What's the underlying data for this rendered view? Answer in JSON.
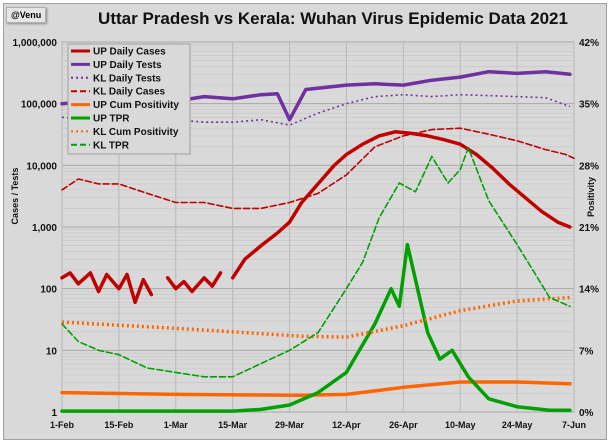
{
  "badge": "@Venu",
  "chart_data": {
    "type": "line",
    "title": "Uttar Pradesh vs Kerala: Wuhan Virus Epidemic Data 2021",
    "ylabel": "Cases / Tests",
    "y2label": "Positivity",
    "yscale": "log",
    "ylim": [
      1,
      1000000
    ],
    "y2lim": [
      0,
      42
    ],
    "ytick_labels": [
      "1",
      "10",
      "100",
      "1,000",
      "10,000",
      "100,000",
      "1,000,000"
    ],
    "ytick_values": [
      1,
      10,
      100,
      1000,
      10000,
      100000,
      1000000
    ],
    "y2tick_labels": [
      "0%",
      "7%",
      "14%",
      "21%",
      "28%",
      "35%",
      "42%"
    ],
    "y2tick_values": [
      0,
      7,
      14,
      21,
      28,
      35,
      42
    ],
    "xlim": [
      "2021-02-01",
      "2021-06-07"
    ],
    "xtick_labels": [
      "1-Feb",
      "15-Feb",
      "1-Mar",
      "15-Mar",
      "29-Mar",
      "12-Apr",
      "26-Apr",
      "10-May",
      "24-May",
      "7-Jun"
    ],
    "xtick_dates": [
      "2021-02-01",
      "2021-02-15",
      "2021-03-01",
      "2021-03-15",
      "2021-03-29",
      "2021-04-12",
      "2021-04-26",
      "2021-05-10",
      "2021-05-24",
      "2021-06-07"
    ],
    "grid": true,
    "legend_position": "top-left",
    "series": [
      {
        "name": "UP Daily Cases",
        "axis": "left",
        "color": "#c00000",
        "style": "solid",
        "points": [
          [
            "2021-02-01",
            150
          ],
          [
            "2021-02-03",
            180
          ],
          [
            "2021-02-05",
            120
          ],
          [
            "2021-02-08",
            180
          ],
          [
            "2021-02-10",
            90
          ],
          [
            "2021-02-12",
            170
          ],
          [
            "2021-02-15",
            100
          ],
          [
            "2021-02-17",
            170
          ],
          [
            "2021-02-19",
            60
          ],
          [
            "2021-02-21",
            140
          ],
          [
            "2021-02-23",
            80
          ],
          null,
          [
            "2021-02-27",
            150
          ],
          [
            "2021-03-01",
            100
          ],
          [
            "2021-03-03",
            130
          ],
          [
            "2021-03-05",
            90
          ],
          [
            "2021-03-08",
            150
          ],
          [
            "2021-03-10",
            110
          ],
          [
            "2021-03-12",
            180
          ],
          null,
          [
            "2021-03-15",
            150
          ],
          [
            "2021-03-18",
            300
          ],
          [
            "2021-03-22",
            500
          ],
          [
            "2021-03-26",
            800
          ],
          [
            "2021-03-29",
            1200
          ],
          [
            "2021-04-01",
            2500
          ],
          [
            "2021-04-05",
            5000
          ],
          [
            "2021-04-09",
            10000
          ],
          [
            "2021-04-12",
            15000
          ],
          [
            "2021-04-16",
            22000
          ],
          [
            "2021-04-20",
            30000
          ],
          [
            "2021-04-24",
            35000
          ],
          [
            "2021-04-28",
            33000
          ],
          [
            "2021-05-02",
            30000
          ],
          [
            "2021-05-06",
            26000
          ],
          [
            "2021-05-10",
            22000
          ],
          [
            "2021-05-14",
            15000
          ],
          [
            "2021-05-18",
            9000
          ],
          [
            "2021-05-22",
            5000
          ],
          [
            "2021-05-26",
            3000
          ],
          [
            "2021-05-30",
            1800
          ],
          [
            "2021-06-03",
            1200
          ],
          [
            "2021-06-06",
            1000
          ]
        ]
      },
      {
        "name": "UP Daily Tests",
        "axis": "left",
        "color": "#7030a0",
        "style": "solid",
        "points": [
          [
            "2021-02-01",
            100000
          ],
          [
            "2021-02-08",
            110000
          ],
          [
            "2021-02-15",
            90000
          ],
          [
            "2021-02-22",
            95000
          ],
          [
            "2021-03-01",
            110000
          ],
          [
            "2021-03-08",
            130000
          ],
          [
            "2021-03-15",
            120000
          ],
          [
            "2021-03-22",
            140000
          ],
          [
            "2021-03-26",
            145000
          ],
          [
            "2021-03-29",
            55000
          ],
          [
            "2021-04-02",
            170000
          ],
          [
            "2021-04-12",
            200000
          ],
          [
            "2021-04-19",
            210000
          ],
          [
            "2021-04-26",
            200000
          ],
          [
            "2021-05-03",
            240000
          ],
          [
            "2021-05-10",
            270000
          ],
          [
            "2021-05-17",
            330000
          ],
          [
            "2021-05-24",
            310000
          ],
          [
            "2021-05-31",
            330000
          ],
          [
            "2021-06-06",
            300000
          ]
        ]
      },
      {
        "name": "KL Daily Tests",
        "axis": "left",
        "color": "#7030a0",
        "style": "dotted",
        "points": [
          [
            "2021-02-01",
            60000
          ],
          [
            "2021-02-08",
            55000
          ],
          [
            "2021-02-15",
            60000
          ],
          [
            "2021-02-22",
            50000
          ],
          [
            "2021-03-01",
            55000
          ],
          [
            "2021-03-08",
            50000
          ],
          [
            "2021-03-15",
            50000
          ],
          [
            "2021-03-22",
            55000
          ],
          [
            "2021-03-29",
            45000
          ],
          [
            "2021-04-05",
            70000
          ],
          [
            "2021-04-12",
            100000
          ],
          [
            "2021-04-19",
            130000
          ],
          [
            "2021-04-26",
            140000
          ],
          [
            "2021-05-03",
            130000
          ],
          [
            "2021-05-10",
            140000
          ],
          [
            "2021-05-17",
            135000
          ],
          [
            "2021-05-24",
            130000
          ],
          [
            "2021-05-31",
            125000
          ],
          [
            "2021-06-06",
            90000
          ]
        ]
      },
      {
        "name": "KL Daily Cases",
        "axis": "left",
        "color": "#c00000",
        "style": "dashed",
        "points": [
          [
            "2021-02-01",
            4000
          ],
          [
            "2021-02-05",
            6000
          ],
          [
            "2021-02-10",
            5000
          ],
          [
            "2021-02-15",
            5000
          ],
          [
            "2021-02-22",
            3500
          ],
          [
            "2021-03-01",
            2500
          ],
          [
            "2021-03-08",
            2500
          ],
          [
            "2021-03-15",
            2000
          ],
          [
            "2021-03-22",
            2000
          ],
          [
            "2021-03-29",
            2500
          ],
          [
            "2021-04-05",
            3500
          ],
          [
            "2021-04-12",
            7000
          ],
          [
            "2021-04-19",
            20000
          ],
          [
            "2021-04-26",
            30000
          ],
          [
            "2021-05-03",
            38000
          ],
          [
            "2021-05-10",
            40000
          ],
          [
            "2021-05-17",
            32000
          ],
          [
            "2021-05-24",
            25000
          ],
          [
            "2021-05-31",
            18000
          ],
          [
            "2021-06-05",
            15000
          ],
          [
            "2021-06-07",
            13000
          ]
        ]
      },
      {
        "name": "UP Cum Positivity",
        "axis": "right",
        "color": "#ff6600",
        "style": "solid",
        "points": [
          [
            "2021-02-01",
            2.2
          ],
          [
            "2021-03-01",
            2.0
          ],
          [
            "2021-04-01",
            1.9
          ],
          [
            "2021-04-12",
            2.0
          ],
          [
            "2021-04-26",
            2.8
          ],
          [
            "2021-05-10",
            3.4
          ],
          [
            "2021-05-24",
            3.4
          ],
          [
            "2021-06-06",
            3.2
          ]
        ]
      },
      {
        "name": "UP TPR",
        "axis": "right",
        "color": "#00a000",
        "style": "solid",
        "points": [
          [
            "2021-02-01",
            0.1
          ],
          [
            "2021-03-15",
            0.1
          ],
          [
            "2021-03-22",
            0.3
          ],
          [
            "2021-03-29",
            0.8
          ],
          [
            "2021-04-05",
            2.2
          ],
          [
            "2021-04-12",
            4.5
          ],
          [
            "2021-04-19",
            10
          ],
          [
            "2021-04-23",
            14
          ],
          [
            "2021-04-25",
            12
          ],
          [
            "2021-04-27",
            19
          ],
          [
            "2021-05-02",
            9
          ],
          [
            "2021-05-05",
            6
          ],
          [
            "2021-05-08",
            7
          ],
          [
            "2021-05-12",
            4
          ],
          [
            "2021-05-17",
            1.5
          ],
          [
            "2021-05-24",
            0.6
          ],
          [
            "2021-06-01",
            0.2
          ],
          [
            "2021-06-06",
            0.2
          ]
        ]
      },
      {
        "name": "KL Cum Positivity",
        "axis": "right",
        "color": "#ff6600",
        "style": "dotted",
        "points": [
          [
            "2021-02-01",
            10.2
          ],
          [
            "2021-03-01",
            9.5
          ],
          [
            "2021-04-01",
            8.6
          ],
          [
            "2021-04-12",
            8.5
          ],
          [
            "2021-04-26",
            9.8
          ],
          [
            "2021-05-10",
            11.5
          ],
          [
            "2021-05-24",
            12.6
          ],
          [
            "2021-06-06",
            13.0
          ]
        ]
      },
      {
        "name": "KL TPR",
        "axis": "right",
        "color": "#00a000",
        "style": "dashed",
        "points": [
          [
            "2021-02-01",
            10
          ],
          [
            "2021-02-05",
            8
          ],
          [
            "2021-02-10",
            7
          ],
          [
            "2021-02-15",
            6.5
          ],
          [
            "2021-02-22",
            5
          ],
          [
            "2021-03-01",
            4.5
          ],
          [
            "2021-03-08",
            4
          ],
          [
            "2021-03-15",
            4
          ],
          [
            "2021-03-22",
            5.5
          ],
          [
            "2021-03-29",
            7
          ],
          [
            "2021-04-05",
            9
          ],
          [
            "2021-04-12",
            14
          ],
          [
            "2021-04-16",
            17
          ],
          [
            "2021-04-20",
            22
          ],
          [
            "2021-04-25",
            26
          ],
          [
            "2021-04-29",
            25
          ],
          [
            "2021-05-03",
            29
          ],
          [
            "2021-05-07",
            26
          ],
          [
            "2021-05-10",
            27.5
          ],
          [
            "2021-05-12",
            30
          ],
          [
            "2021-05-17",
            24
          ],
          [
            "2021-05-24",
            19
          ],
          [
            "2021-05-28",
            16
          ],
          [
            "2021-06-01",
            13
          ],
          [
            "2021-06-06",
            12
          ]
        ]
      }
    ]
  }
}
